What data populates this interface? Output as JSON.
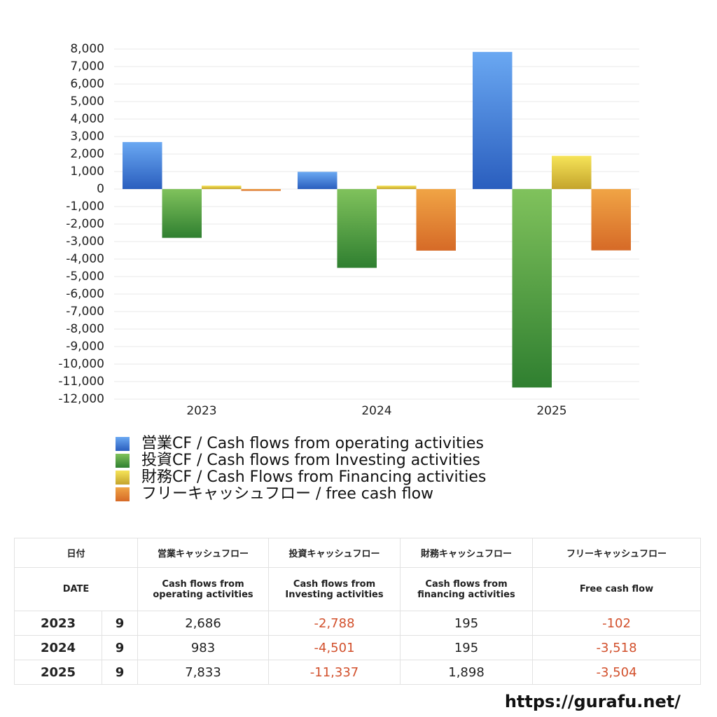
{
  "chart_data": {
    "type": "bar",
    "categories": [
      "2023",
      "2024",
      "2025"
    ],
    "series": [
      {
        "name": "営業CF / Cash flows from operating activities",
        "color": "#3f7fd8",
        "gradient": [
          "#6aa8f2",
          "#2a5ebe"
        ],
        "values": [
          2686,
          983,
          7833
        ],
        "value_labels": [
          "2,686",
          "983",
          "7,833"
        ]
      },
      {
        "name": "投資CF / Cash flows from Investing activities",
        "color": "#55a040",
        "gradient": [
          "#80c25c",
          "#2f7f30"
        ],
        "values": [
          -2788,
          -4501,
          -11337
        ],
        "value_labels": [
          "-2,788",
          "-4,501",
          "-11,337"
        ]
      },
      {
        "name": "財務CF / Cash Flows from Financing activities",
        "color": "#e2c83a",
        "gradient": [
          "#f6e458",
          "#c4a42c"
        ],
        "values": [
          195,
          195,
          1898
        ],
        "value_labels": [
          "195",
          "195",
          "1,898"
        ]
      },
      {
        "name": "フリーキャッシュフロー / free cash flow",
        "color": "#e58a34",
        "gradient": [
          "#f0a445",
          "#d66a27"
        ],
        "values": [
          -102,
          -3518,
          -3504
        ],
        "value_labels": [
          "-102",
          "-3,518",
          "-3,504"
        ]
      }
    ],
    "ylim": [
      -12000,
      8000
    ],
    "yticks": [
      {
        "value": -12000,
        "label": "-12,000"
      },
      {
        "value": -11000,
        "label": "-11,000"
      },
      {
        "value": -10000,
        "label": "-10,000"
      },
      {
        "value": -9000,
        "label": "-9,000"
      },
      {
        "value": -8000,
        "label": "-8,000"
      },
      {
        "value": -7000,
        "label": "-7,000"
      },
      {
        "value": -6000,
        "label": "-6,000"
      },
      {
        "value": -5000,
        "label": "-5,000"
      },
      {
        "value": -4000,
        "label": "-4,000"
      },
      {
        "value": -3000,
        "label": "-3,000"
      },
      {
        "value": -2000,
        "label": "-2,000"
      },
      {
        "value": -1000,
        "label": "-1,000"
      },
      0,
      {
        "value": 1000,
        "label": "1,000"
      },
      {
        "value": 2000,
        "label": "2,000"
      },
      {
        "value": 3000,
        "label": "3,000"
      },
      {
        "value": 4000,
        "label": "4,000"
      },
      {
        "value": 5000,
        "label": "5,000"
      },
      {
        "value": 6000,
        "label": "6,000"
      },
      {
        "value": 7000,
        "label": "7,000"
      },
      {
        "value": 8000,
        "label": "8,000"
      }
    ],
    "grid": true
  },
  "table": {
    "headers_ja": [
      "日付",
      "営業キャッシュフロー",
      "投資キャッシュフロー",
      "財務キャッシュフロー",
      "フリーキャッシュフロー"
    ],
    "headers_en": [
      "DATE",
      "Cash flows from operating activities",
      "Cash flows from Investing activities",
      "Cash flows from financing activities",
      "Free cash flow"
    ],
    "months": [
      "9",
      "9",
      "9"
    ]
  },
  "footer": "https://gurafu.net/"
}
